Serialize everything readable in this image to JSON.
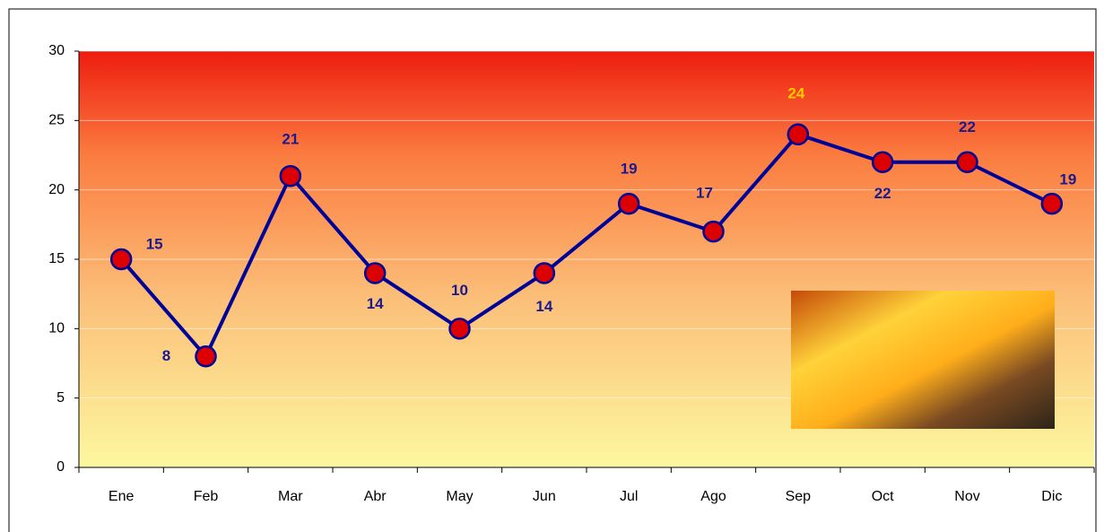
{
  "chart_data": {
    "type": "line",
    "categories": [
      "Ene",
      "Feb",
      "Mar",
      "Abr",
      "May",
      "Jun",
      "Jul",
      "Ago",
      "Sep",
      "Oct",
      "Nov",
      "Dic"
    ],
    "series": [
      {
        "color": "#000099",
        "marker_color": "#dd0000",
        "values": [
          15,
          8,
          21,
          14,
          10,
          14,
          19,
          17,
          24,
          22,
          22,
          19
        ]
      }
    ],
    "value_label_colors": [
      "#1a1a8c",
      "#1a1a8c",
      "#1a1a8c",
      "#1a1a8c",
      "#1a1a8c",
      "#1a1a8c",
      "#1a1a8c",
      "#1a1a8c",
      "#ffcc00",
      "#1a1a8c",
      "#1a1a8c",
      "#1a1a8c"
    ],
    "ylim": [
      0,
      30
    ],
    "yticks": [
      0,
      5,
      10,
      15,
      20,
      25,
      30
    ],
    "grid": true
  }
}
